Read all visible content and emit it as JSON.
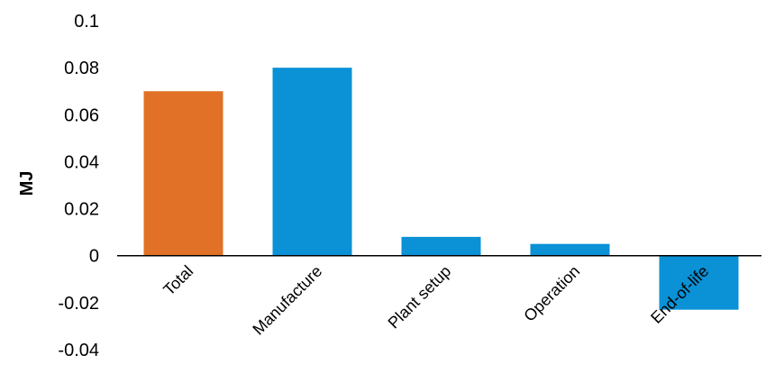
{
  "chart_data": {
    "type": "bar",
    "categories": [
      "Total",
      "Manufacture",
      "Plant setup",
      "Operation",
      "End-of-life"
    ],
    "values": [
      0.07,
      0.08,
      0.008,
      0.005,
      -0.023
    ],
    "colors": [
      "#e07127",
      "#0a91d6",
      "#0a91d6",
      "#0a91d6",
      "#0a91d6"
    ],
    "title": "",
    "xlabel": "",
    "ylabel": "MJ",
    "ylim": [
      -0.04,
      0.1
    ],
    "yticks": [
      "0.1",
      "0.08",
      "0.06",
      "0.04",
      "0.02",
      "0",
      "-0.02",
      "-0.04"
    ],
    "grid": false,
    "legend": "none"
  }
}
